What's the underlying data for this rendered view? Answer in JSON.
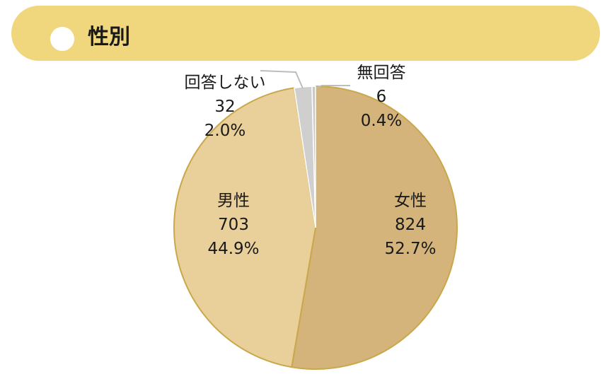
{
  "header": {
    "title": "性別"
  },
  "colors": {
    "header_bg": "#f0d77e",
    "slice_female": "#d4b47a",
    "slice_male": "#e9d09a",
    "slice_noanswer": "#cfcfcf",
    "slice_unanswered": "#c9c9c9",
    "pie_border": "#c9a74a"
  },
  "chart_data": {
    "type": "pie",
    "title": "性別",
    "start": "12 o'clock, clockwise",
    "slices": [
      {
        "label": "女性",
        "count": "824",
        "percent": "52.7%",
        "value": 52.7
      },
      {
        "label": "男性",
        "count": "703",
        "percent": "44.9%",
        "value": 44.9
      },
      {
        "label": "回答しない",
        "count": "32",
        "percent": "2.0%",
        "value": 2.0
      },
      {
        "label": "無回答",
        "count": "6",
        "percent": "0.4%",
        "value": 0.4
      }
    ]
  }
}
